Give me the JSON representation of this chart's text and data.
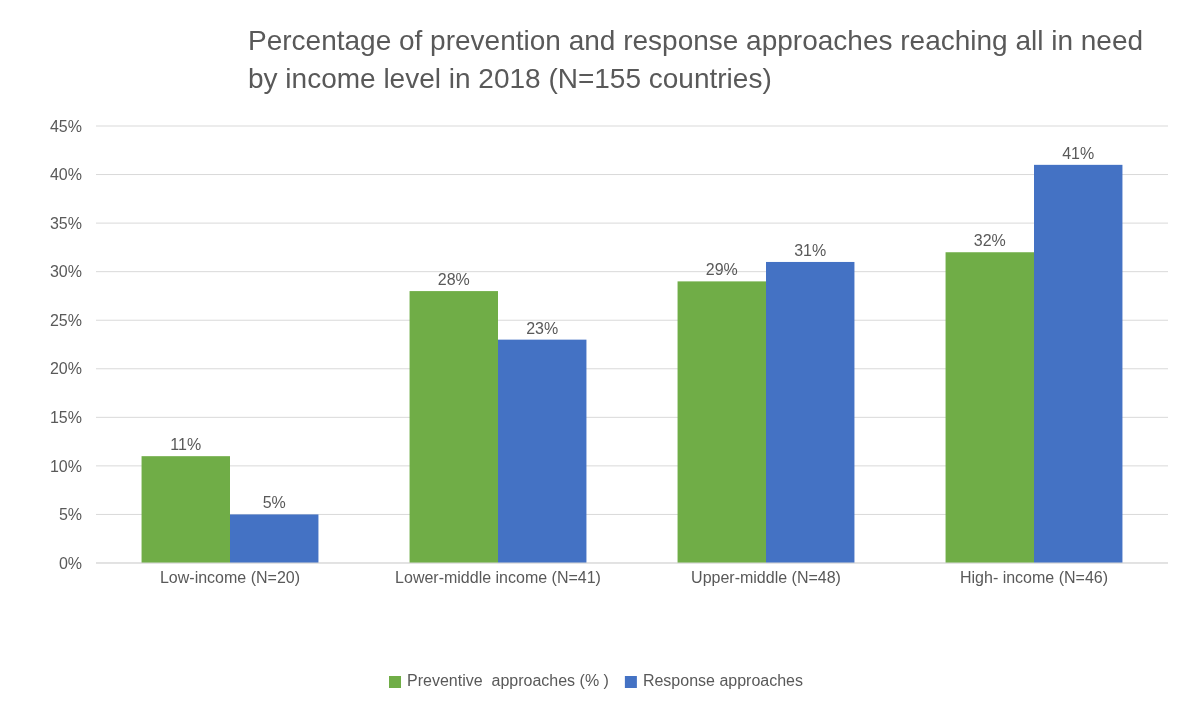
{
  "chart_data": {
    "type": "bar",
    "title": "Percentage of prevention and response approaches reaching all in need by income level in 2018 (N=155 countries)",
    "categories": [
      "Low-income (N=20)",
      "Lower-middle income (N=41)",
      "Upper-middle (N=48)",
      "High- income (N=46)"
    ],
    "series": [
      {
        "name": "Preventive  approaches (% )",
        "color": "#70ad47",
        "values": [
          11,
          28,
          29,
          32
        ],
        "value_labels": [
          "11%",
          "28%",
          "29%",
          "32%"
        ]
      },
      {
        "name": "Response approaches",
        "color": "#4472c4",
        "values": [
          5,
          23,
          31,
          41
        ],
        "value_labels": [
          "5%",
          "23%",
          "31%",
          "41%"
        ]
      }
    ],
    "ylim": [
      0,
      45
    ],
    "yticks": [
      {
        "value": 0,
        "label": "0%"
      },
      {
        "value": 5,
        "label": "5%"
      },
      {
        "value": 10,
        "label": "10%"
      },
      {
        "value": 15,
        "label": "15%"
      },
      {
        "value": 20,
        "label": "20%"
      },
      {
        "value": 25,
        "label": "25%"
      },
      {
        "value": 30,
        "label": "30%"
      },
      {
        "value": 35,
        "label": "35%"
      },
      {
        "value": 40,
        "label": "40%"
      },
      {
        "value": 45,
        "label": "45%"
      }
    ],
    "grid": "y",
    "legend": "bottom"
  }
}
